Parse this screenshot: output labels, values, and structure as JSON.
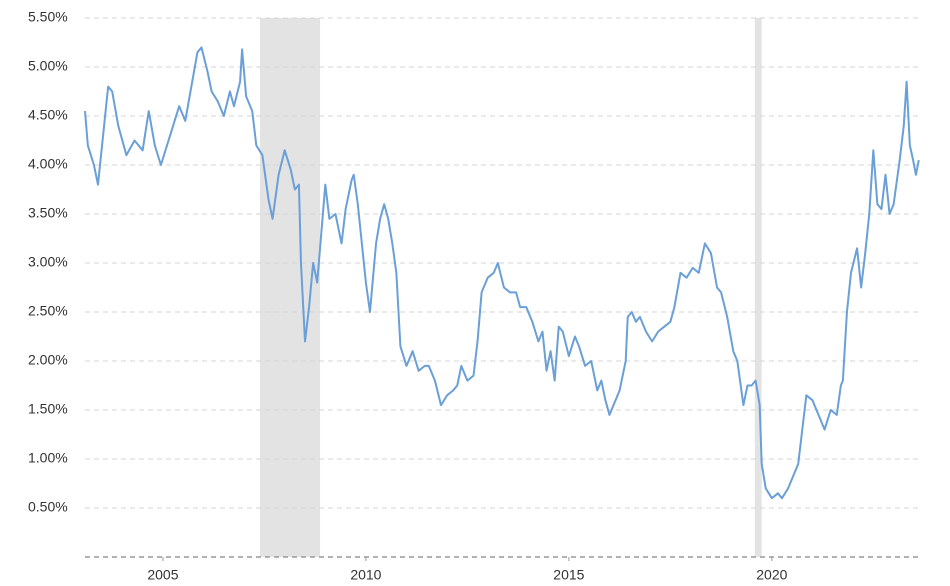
{
  "chart_data": {
    "type": "line",
    "xlim": [
      2003.08,
      2023.65
    ],
    "xticks": [
      2005,
      2010,
      2015,
      2020
    ],
    "ylim": [
      0,
      5.5
    ],
    "yticks": [
      {
        "value": 0.5,
        "label": "0.50%"
      },
      {
        "value": 1.0,
        "label": "1.00%"
      },
      {
        "value": 1.5,
        "label": "1.50%"
      },
      {
        "value": 2.0,
        "label": "2.00%"
      },
      {
        "value": 2.5,
        "label": "2.50%"
      },
      {
        "value": 3.0,
        "label": "3.00%"
      },
      {
        "value": 3.5,
        "label": "3.50%"
      },
      {
        "value": 4.0,
        "label": "4.00%"
      },
      {
        "value": 4.5,
        "label": "4.50%"
      },
      {
        "value": 5.0,
        "label": "5.00%"
      },
      {
        "value": 5.5,
        "label": "5.50%"
      }
    ],
    "grid": true,
    "shaded_periods": [
      [
        2007.39,
        2008.87
      ],
      [
        2019.58,
        2019.75
      ]
    ],
    "shade_color": "#e3e3e3",
    "x": [
      2003.08,
      2003.15,
      2003.3,
      2003.4,
      2003.55,
      2003.65,
      2003.75,
      2003.9,
      2004.1,
      2004.3,
      2004.5,
      2004.65,
      2004.8,
      2004.95,
      2005.1,
      2005.25,
      2005.4,
      2005.55,
      2005.7,
      2005.85,
      2005.95,
      2006.1,
      2006.2,
      2006.35,
      2006.5,
      2006.65,
      2006.75,
      2006.9,
      2006.95,
      2007.05,
      2007.2,
      2007.3,
      2007.45,
      2007.6,
      2007.7,
      2007.85,
      2008.0,
      2008.15,
      2008.25,
      2008.35,
      2008.4,
      2008.5,
      2008.6,
      2008.7,
      2008.8,
      2008.9,
      2009.0,
      2009.1,
      2009.25,
      2009.4,
      2009.5,
      2009.65,
      2009.7,
      2009.8,
      2009.9,
      2010.0,
      2010.1,
      2010.25,
      2010.35,
      2010.45,
      2010.55,
      2010.65,
      2010.75,
      2010.85,
      2011.0,
      2011.15,
      2011.3,
      2011.45,
      2011.55,
      2011.7,
      2011.85,
      2012.0,
      2012.15,
      2012.25,
      2012.35,
      2012.5,
      2012.65,
      2012.75,
      2012.85,
      2013.0,
      2013.15,
      2013.25,
      2013.4,
      2013.55,
      2013.7,
      2013.8,
      2013.95,
      2014.1,
      2014.25,
      2014.35,
      2014.45,
      2014.55,
      2014.65,
      2014.75,
      2014.85,
      2015.0,
      2015.15,
      2015.25,
      2015.4,
      2015.55,
      2015.7,
      2015.8,
      2015.9,
      2016.0,
      2016.15,
      2016.25,
      2016.4,
      2016.45,
      2016.55,
      2016.65,
      2016.75,
      2016.9,
      2017.05,
      2017.2,
      2017.35,
      2017.5,
      2017.6,
      2017.75,
      2017.9,
      2018.05,
      2018.2,
      2018.35,
      2018.5,
      2018.65,
      2018.75,
      2018.9,
      2019.05,
      2019.15,
      2019.3,
      2019.4,
      2019.5,
      2019.6,
      2019.7,
      2019.75,
      2019.85,
      2020.0,
      2020.15,
      2020.25,
      2020.4,
      2020.55,
      2020.65,
      2020.75,
      2020.85,
      2021.0,
      2021.15,
      2021.3,
      2021.45,
      2021.6,
      2021.7,
      2021.75,
      2021.85,
      2021.95,
      2022.1,
      2022.2,
      2022.3,
      2022.4,
      2022.5,
      2022.6,
      2022.7,
      2022.8,
      2022.9,
      2023.0,
      2023.15,
      2023.25,
      2023.32,
      2023.4,
      2023.48,
      2023.55,
      2023.62
    ],
    "series": [
      {
        "color": "#6a9fd8",
        "values": [
          4.55,
          4.2,
          4.0,
          3.8,
          4.4,
          4.8,
          4.75,
          4.4,
          4.1,
          4.25,
          4.15,
          4.55,
          4.2,
          4.0,
          4.2,
          4.4,
          4.6,
          4.45,
          4.8,
          5.15,
          5.2,
          4.95,
          4.75,
          4.65,
          4.5,
          4.75,
          4.6,
          4.85,
          5.18,
          4.7,
          4.55,
          4.2,
          4.1,
          3.65,
          3.45,
          3.9,
          4.15,
          3.95,
          3.75,
          3.8,
          3.0,
          2.2,
          2.55,
          3.0,
          2.8,
          3.3,
          3.8,
          3.45,
          3.5,
          3.2,
          3.55,
          3.85,
          3.9,
          3.6,
          3.2,
          2.8,
          2.5,
          3.2,
          3.45,
          3.6,
          3.45,
          3.2,
          2.9,
          2.15,
          1.95,
          2.1,
          1.9,
          1.95,
          1.95,
          1.8,
          1.55,
          1.65,
          1.7,
          1.75,
          1.95,
          1.8,
          1.85,
          2.2,
          2.7,
          2.85,
          2.9,
          3.0,
          2.75,
          2.7,
          2.7,
          2.55,
          2.55,
          2.4,
          2.2,
          2.3,
          1.9,
          2.1,
          1.8,
          2.35,
          2.3,
          2.05,
          2.25,
          2.15,
          1.95,
          2.0,
          1.7,
          1.8,
          1.6,
          1.45,
          1.6,
          1.7,
          2.0,
          2.45,
          2.5,
          2.4,
          2.45,
          2.3,
          2.2,
          2.3,
          2.35,
          2.4,
          2.55,
          2.9,
          2.85,
          2.95,
          2.9,
          3.2,
          3.1,
          2.75,
          2.7,
          2.45,
          2.1,
          2.0,
          1.55,
          1.75,
          1.75,
          1.8,
          1.55,
          0.95,
          0.7,
          0.6,
          0.65,
          0.6,
          0.7,
          0.85,
          0.95,
          1.3,
          1.65,
          1.6,
          1.45,
          1.3,
          1.5,
          1.45,
          1.75,
          1.8,
          2.5,
          2.9,
          3.15,
          2.75,
          3.1,
          3.5,
          4.15,
          3.6,
          3.55,
          3.9,
          3.5,
          3.6,
          4.05,
          4.4,
          4.85,
          4.2,
          4.05,
          3.9,
          4.05
        ]
      }
    ]
  }
}
